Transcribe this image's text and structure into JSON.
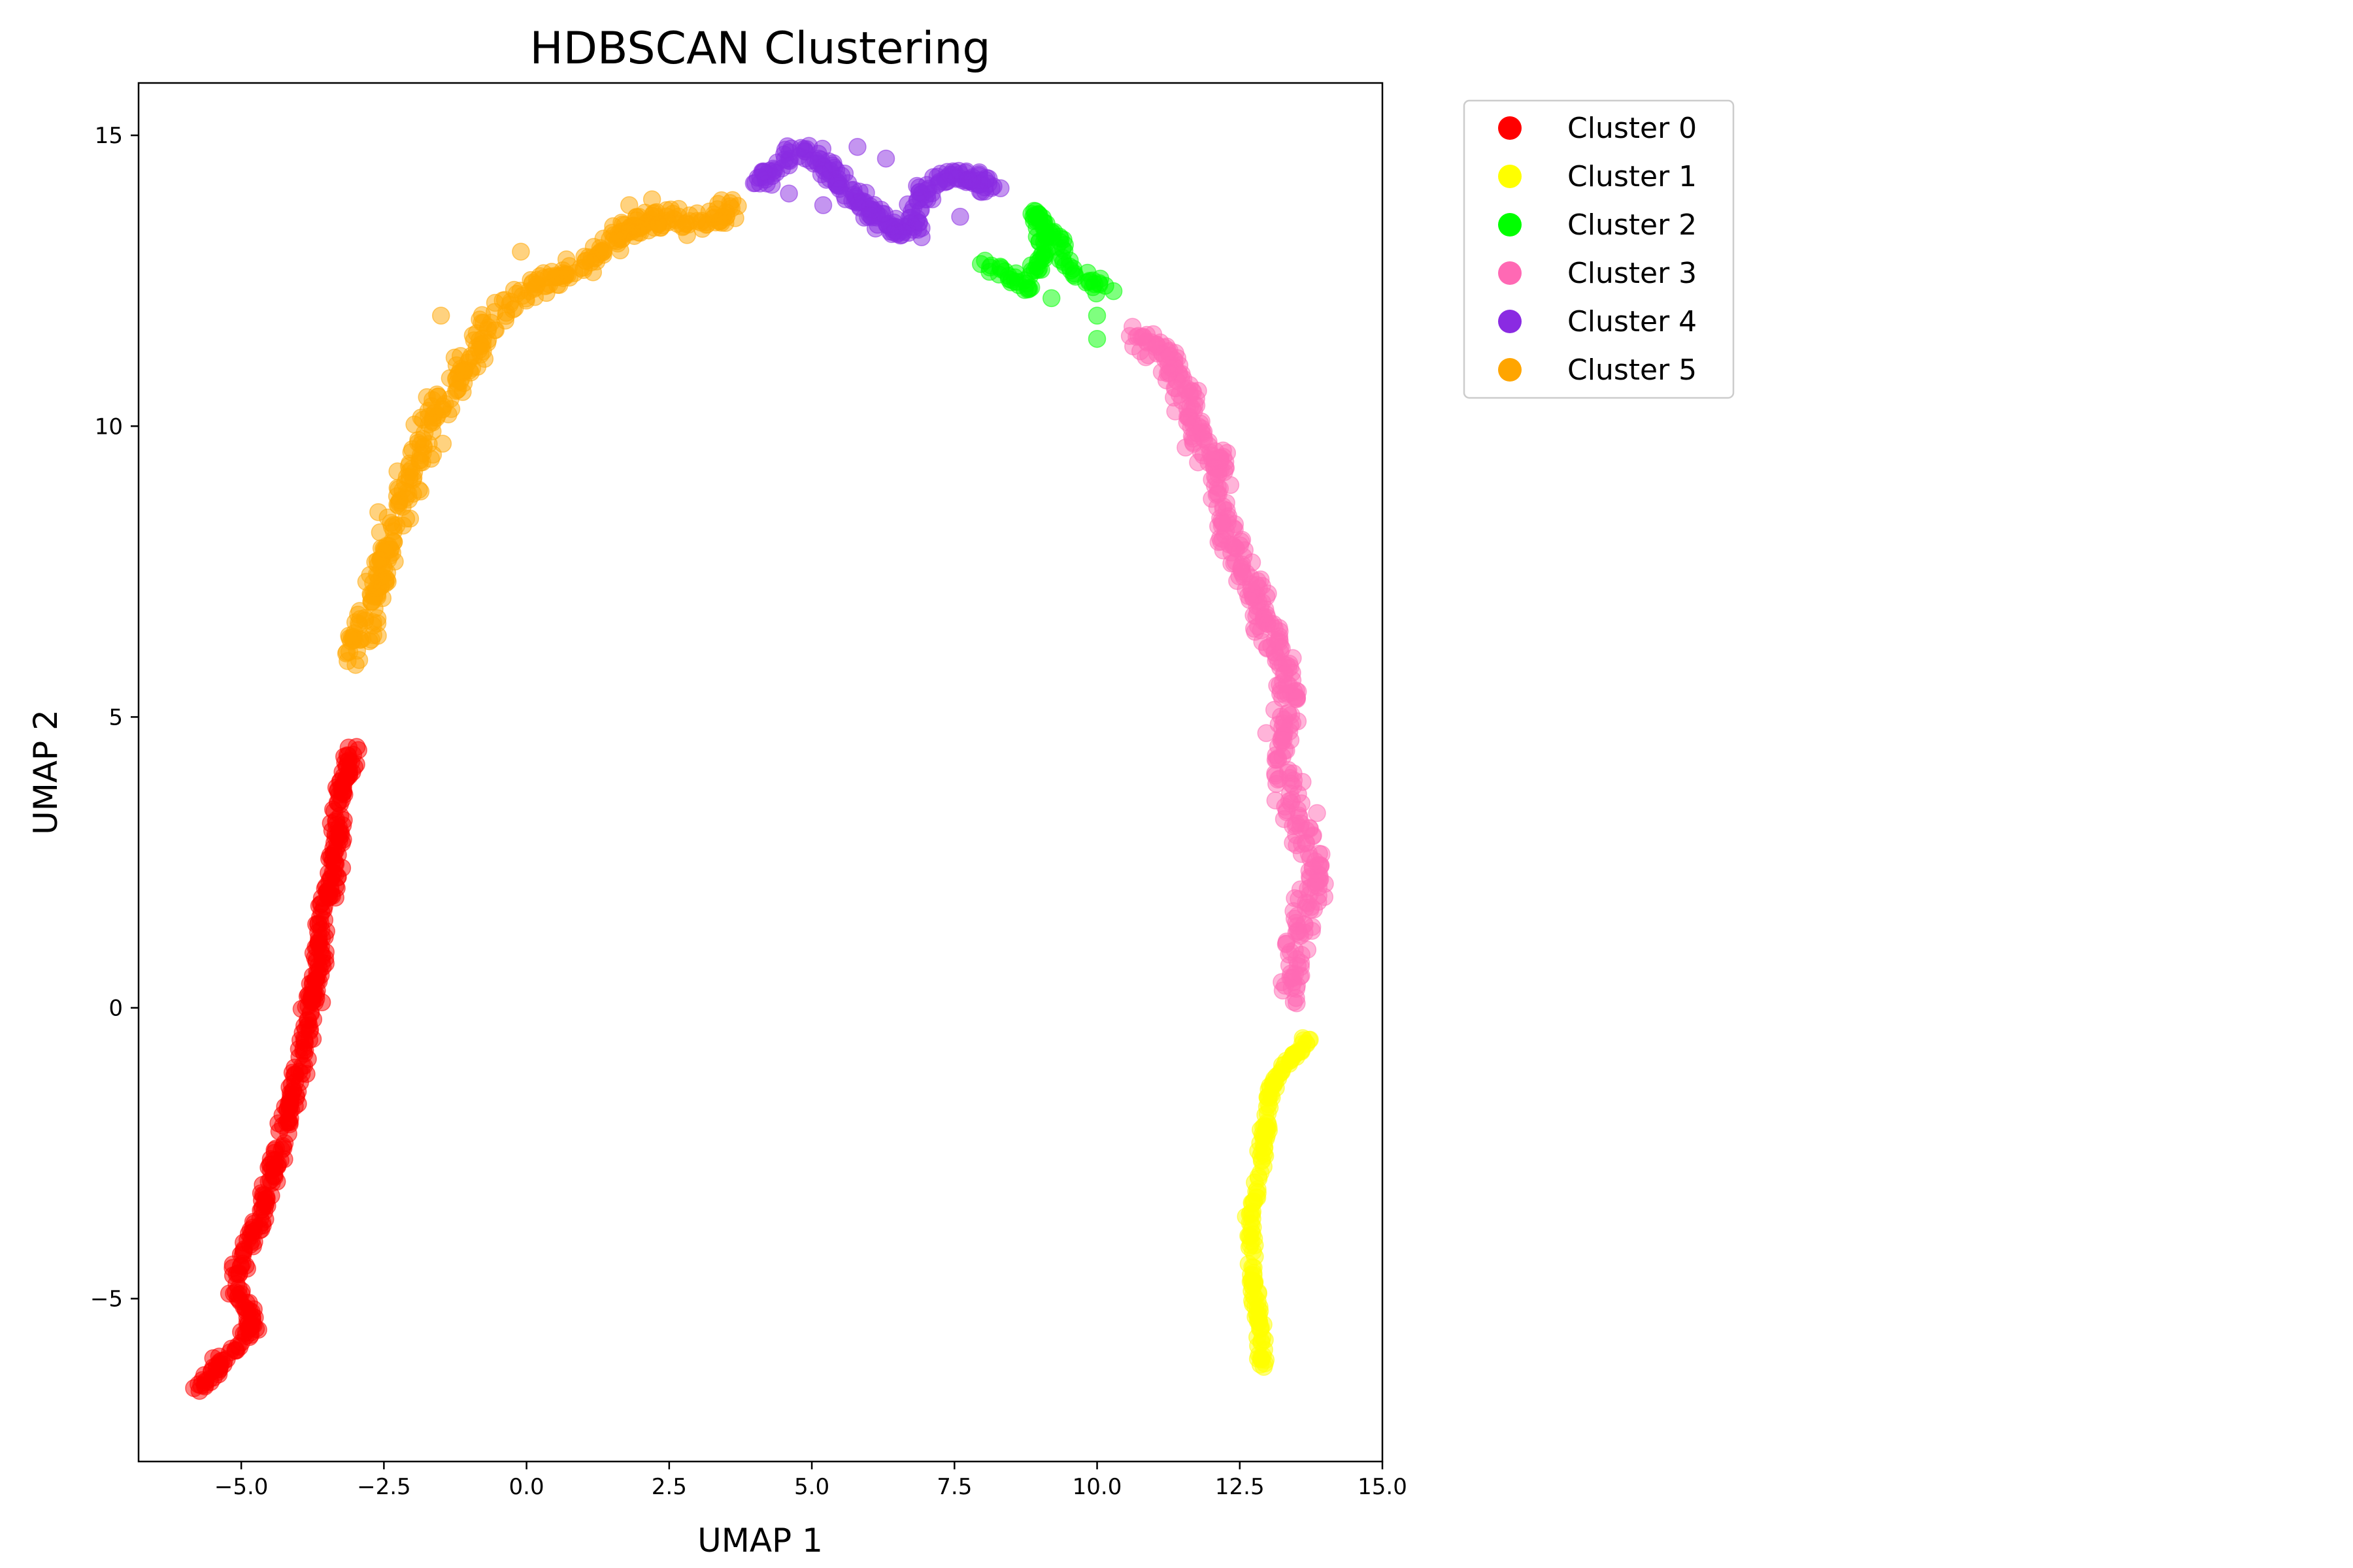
{
  "chart_data": {
    "type": "scatter",
    "title": "HDBSCAN Clustering",
    "xlabel": "UMAP 1",
    "ylabel": "UMAP 2",
    "xlim": [
      -6.8,
      15.0
    ],
    "ylim": [
      -7.8,
      15.9
    ],
    "x_ticks": [
      -5.0,
      -2.5,
      0.0,
      2.5,
      5.0,
      7.5,
      10.0,
      12.5,
      15.0
    ],
    "x_tick_labels": [
      "−5.0",
      "−2.5",
      "0.0",
      "2.5",
      "5.0",
      "7.5",
      "10.0",
      "12.5",
      "15.0"
    ],
    "y_ticks": [
      -5,
      0,
      5,
      10,
      15
    ],
    "y_tick_labels": [
      "−5",
      "0",
      "5",
      "10",
      "15"
    ],
    "grid": false,
    "legend_position": "outside-right",
    "point_alpha": 0.5,
    "series": [
      {
        "name": "Cluster 0",
        "color": "#ff0000",
        "path": [
          [
            -5.7,
            -6.6
          ],
          [
            -5.4,
            -6.1
          ],
          [
            -5.0,
            -5.8
          ],
          [
            -4.8,
            -5.3
          ],
          [
            -5.1,
            -4.8
          ],
          [
            -5.0,
            -4.2
          ],
          [
            -4.7,
            -3.7
          ],
          [
            -4.5,
            -3.0
          ],
          [
            -4.3,
            -2.3
          ],
          [
            -4.1,
            -1.6
          ],
          [
            -3.9,
            -0.8
          ],
          [
            -3.8,
            0.0
          ],
          [
            -3.6,
            0.8
          ],
          [
            -3.6,
            1.5
          ],
          [
            -3.4,
            2.2
          ],
          [
            -3.3,
            3.0
          ],
          [
            -3.3,
            3.6
          ],
          [
            -3.1,
            4.2
          ],
          [
            -3.0,
            4.5
          ]
        ],
        "count": 420,
        "spread": 0.12
      },
      {
        "name": "Cluster 1",
        "color": "#ffff00",
        "path": [
          [
            12.9,
            -6.2
          ],
          [
            12.85,
            -5.5
          ],
          [
            12.75,
            -4.8
          ],
          [
            12.7,
            -4.2
          ],
          [
            12.7,
            -3.6
          ],
          [
            12.8,
            -3.2
          ],
          [
            12.9,
            -2.6
          ],
          [
            12.95,
            -2.0
          ],
          [
            13.05,
            -1.4
          ],
          [
            13.25,
            -1.0
          ],
          [
            13.5,
            -0.8
          ],
          [
            13.7,
            -0.5
          ]
        ],
        "count": 170,
        "spread": 0.07
      },
      {
        "name": "Cluster 2",
        "color": "#00ff00",
        "path": [
          [
            8.0,
            12.8
          ],
          [
            8.4,
            12.6
          ],
          [
            8.8,
            12.4
          ],
          [
            9.0,
            12.8
          ],
          [
            9.1,
            13.3
          ],
          [
            8.9,
            13.7
          ],
          [
            9.3,
            13.2
          ],
          [
            9.5,
            12.7
          ],
          [
            9.9,
            12.5
          ],
          [
            10.2,
            12.4
          ]
        ],
        "extra": [
          [
            10.0,
            11.5
          ],
          [
            10.0,
            11.9
          ],
          [
            9.2,
            12.2
          ]
        ],
        "count": 110,
        "spread": 0.12
      },
      {
        "name": "Cluster 3",
        "color": "#ff69b4",
        "path": [
          [
            10.6,
            11.5
          ],
          [
            11.2,
            11.3
          ],
          [
            11.4,
            10.8
          ],
          [
            11.6,
            10.4
          ],
          [
            11.8,
            9.8
          ],
          [
            12.2,
            9.3
          ],
          [
            12.1,
            8.8
          ],
          [
            12.3,
            8.1
          ],
          [
            12.7,
            7.4
          ],
          [
            12.9,
            6.8
          ],
          [
            13.1,
            6.2
          ],
          [
            13.4,
            5.5
          ],
          [
            13.3,
            4.8
          ],
          [
            13.2,
            4.2
          ],
          [
            13.4,
            3.6
          ],
          [
            13.6,
            3.0
          ],
          [
            13.9,
            2.4
          ],
          [
            13.7,
            1.8
          ],
          [
            13.5,
            1.2
          ],
          [
            13.4,
            0.6
          ],
          [
            13.5,
            0.2
          ]
        ],
        "count": 440,
        "spread": 0.22
      },
      {
        "name": "Cluster 4",
        "color": "#8a2be2",
        "path": [
          [
            4.1,
            14.2
          ],
          [
            4.5,
            14.6
          ],
          [
            4.9,
            14.8
          ],
          [
            5.3,
            14.4
          ],
          [
            5.7,
            14.0
          ],
          [
            6.0,
            13.7
          ],
          [
            6.4,
            13.4
          ],
          [
            6.8,
            13.4
          ],
          [
            6.9,
            13.9
          ],
          [
            7.3,
            14.3
          ],
          [
            7.7,
            14.3
          ],
          [
            8.2,
            14.1
          ]
        ],
        "extra": [
          [
            5.8,
            14.8
          ],
          [
            6.3,
            14.6
          ],
          [
            4.6,
            14.0
          ],
          [
            5.2,
            13.8
          ],
          [
            7.6,
            13.6
          ]
        ],
        "count": 230,
        "spread": 0.17
      },
      {
        "name": "Cluster 5",
        "color": "#ffa500",
        "path": [
          [
            -3.0,
            6.0
          ],
          [
            -2.8,
            6.7
          ],
          [
            -2.6,
            7.4
          ],
          [
            -2.4,
            8.2
          ],
          [
            -2.1,
            8.9
          ],
          [
            -1.9,
            9.6
          ],
          [
            -1.6,
            10.3
          ],
          [
            -1.2,
            10.8
          ],
          [
            -0.9,
            11.3
          ],
          [
            -0.6,
            11.8
          ],
          [
            -0.2,
            12.2
          ],
          [
            0.2,
            12.4
          ],
          [
            0.6,
            12.6
          ],
          [
            1.0,
            12.8
          ],
          [
            1.5,
            13.2
          ],
          [
            2.0,
            13.5
          ],
          [
            2.4,
            13.6
          ],
          [
            2.9,
            13.5
          ],
          [
            3.3,
            13.6
          ],
          [
            3.7,
            13.8
          ]
        ],
        "extra": [
          [
            -0.1,
            13.0
          ],
          [
            -1.5,
            11.9
          ],
          [
            1.8,
            13.8
          ],
          [
            2.2,
            13.9
          ]
        ],
        "count": 420,
        "spread": 0.22
      }
    ]
  }
}
